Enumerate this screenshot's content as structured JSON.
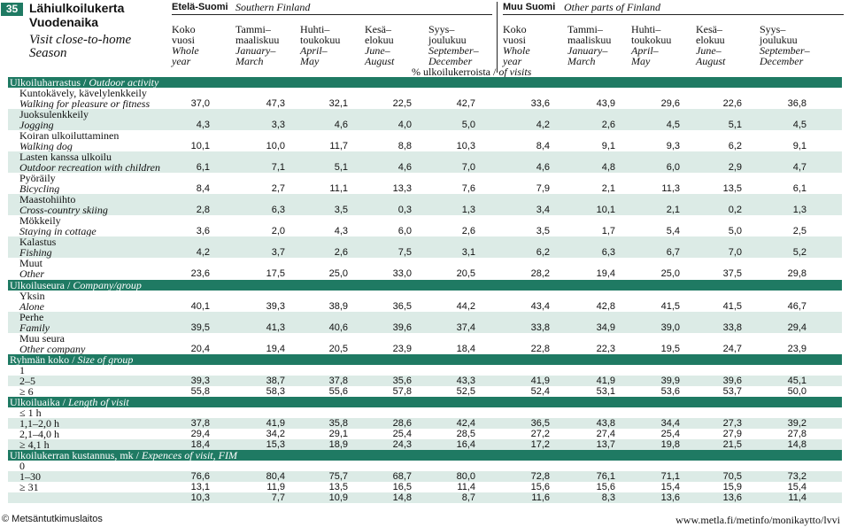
{
  "header": {
    "number": "35",
    "title_fi_1": "Lähiulkoilukerta",
    "title_fi_2": "Vuodenaika",
    "title_en_1": "Visit close-to-home",
    "title_en_2": "Season",
    "region_south_fi": "Etelä-Suomi",
    "region_south_en": "Southern Finland",
    "region_other_fi": "Muu Suomi",
    "region_other_en": "Other parts of Finland",
    "periods": [
      {
        "fi1": "Koko",
        "fi2": "vuosi",
        "en1": "Whole",
        "en2": "year"
      },
      {
        "fi1": "Tammi–",
        "fi2": "maaliskuu",
        "en1": "January–",
        "en2": "March"
      },
      {
        "fi1": "Huhti–",
        "fi2": "toukokuu",
        "en1": "April–",
        "en2": "May"
      },
      {
        "fi1": "Kesä–",
        "fi2": "elokuu",
        "en1": "June–",
        "en2": "August"
      },
      {
        "fi1": "Syys–",
        "fi2": "joulukuu",
        "en1": "September–",
        "en2": "December"
      }
    ],
    "pct_fi": "% ulkoilukerroista",
    "pct_sep": "/",
    "pct_en": "of visits"
  },
  "sections": [
    {
      "fi": "Ulkoiluharrastus",
      "sep": "/",
      "en": "Outdoor activity"
    },
    {
      "fi": "Ulkoiluseura",
      "sep": "/",
      "en": "Company/group"
    },
    {
      "fi": "Ryhmän koko",
      "sep": "/",
      "en": "Size of group"
    },
    {
      "fi": "Ulkoiluaika",
      "sep": "/",
      "en": "Length of visit"
    },
    {
      "fi": "Ulkoilukerran kustannus, mk",
      "sep": "/",
      "en": "Expences of visit, FIM"
    }
  ],
  "rows": [
    {
      "fi": "Kuntokävely, kävelylenkkeily",
      "en": "Walking for pleasure or fitness",
      "v": [
        "37,0",
        "47,3",
        "32,1",
        "22,5",
        "42,7",
        "33,6",
        "43,9",
        "29,6",
        "22,6",
        "36,8"
      ]
    },
    {
      "fi": "Juoksulenkkeily",
      "en": "Jogging",
      "v": [
        "4,3",
        "3,3",
        "4,6",
        "4,0",
        "5,0",
        "4,2",
        "2,6",
        "4,5",
        "5,1",
        "4,5"
      ]
    },
    {
      "fi": "Koiran ulkoiluttaminen",
      "en": "Walking dog",
      "v": [
        "10,1",
        "10,0",
        "11,7",
        "8,8",
        "10,3",
        "8,4",
        "9,1",
        "9,3",
        "6,2",
        "9,1"
      ]
    },
    {
      "fi": "Lasten kanssa ulkoilu",
      "en": "Outdoor recreation with  children",
      "v": [
        "6,1",
        "7,1",
        "5,1",
        "4,6",
        "7,0",
        "4,6",
        "4,8",
        "6,0",
        "2,9",
        "4,7"
      ]
    },
    {
      "fi": "Pyöräily",
      "en": "Bicycling",
      "v": [
        "8,4",
        "2,7",
        "11,1",
        "13,3",
        "7,6",
        "7,9",
        "2,1",
        "11,3",
        "13,5",
        "6,1"
      ]
    },
    {
      "fi": "Maastohiihto",
      "en": "Cross-country skiing",
      "v": [
        "2,8",
        "6,3",
        "3,5",
        "0,3",
        "1,3",
        "3,4",
        "10,1",
        "2,1",
        "0,2",
        "1,3"
      ]
    },
    {
      "fi": "Mökkeily",
      "en": "Staying in cottage",
      "v": [
        "3,6",
        "2,0",
        "4,3",
        "6,0",
        "2,6",
        "3,5",
        "1,7",
        "5,4",
        "5,0",
        "2,5"
      ]
    },
    {
      "fi": "Kalastus",
      "en": "Fishing",
      "v": [
        "4,2",
        "3,7",
        "2,6",
        "7,5",
        "3,1",
        "6,2",
        "6,3",
        "6,7",
        "7,0",
        "5,2"
      ]
    },
    {
      "fi": "Muut",
      "en": "Other",
      "v": [
        "23,6",
        "17,5",
        "25,0",
        "33,0",
        "20,5",
        "28,2",
        "19,4",
        "25,0",
        "37,5",
        "29,8"
      ]
    },
    {
      "fi": "Yksin",
      "en": "Alone",
      "v": [
        "40,1",
        "39,3",
        "38,9",
        "36,5",
        "44,2",
        "43,4",
        "42,8",
        "41,5",
        "41,5",
        "46,7"
      ]
    },
    {
      "fi": "Perhe",
      "en": "Family",
      "v": [
        "39,5",
        "41,3",
        "40,6",
        "39,6",
        "37,4",
        "33,8",
        "34,9",
        "39,0",
        "33,8",
        "29,4"
      ]
    },
    {
      "fi": "Muu seura",
      "en": "Other company",
      "v": [
        "20,4",
        "19,4",
        "20,5",
        "23,9",
        "18,4",
        "22,8",
        "22,3",
        "19,5",
        "24,7",
        "23,9"
      ]
    }
  ],
  "group_rows": [
    {
      "label": "1",
      "v": []
    },
    {
      "label": "2–5",
      "v": [
        "39,3",
        "38,7",
        "37,8",
        "35,6",
        "43,3",
        "41,9",
        "41,9",
        "39,9",
        "39,6",
        "45,1"
      ]
    },
    {
      "label": "≥ 6",
      "v": [
        "55,8",
        "58,3",
        "55,6",
        "57,8",
        "52,5",
        "52,4",
        "53,1",
        "53,6",
        "53,7",
        "50,0"
      ]
    }
  ],
  "length_rows": [
    {
      "label": "≤ 1 h",
      "v": []
    },
    {
      "label": "1,1–2,0 h",
      "v": [
        "37,8",
        "41,9",
        "35,8",
        "28,6",
        "42,4",
        "36,5",
        "43,8",
        "34,4",
        "27,3",
        "39,2"
      ]
    },
    {
      "label": "2,1–4,0 h",
      "v": [
        "29,4",
        "34,2",
        "29,1",
        "25,4",
        "28,5",
        "27,2",
        "27,4",
        "25,4",
        "27,9",
        "27,8"
      ]
    },
    {
      "label": "≥ 4,1 h",
      "v": [
        "18,4",
        "15,3",
        "18,9",
        "24,3",
        "16,4",
        "17,2",
        "13,7",
        "19,8",
        "21,5",
        "14,8"
      ]
    }
  ],
  "cost_rows": [
    {
      "label": "0",
      "v": []
    },
    {
      "label": "1–30",
      "v": [
        "76,6",
        "80,4",
        "75,7",
        "68,7",
        "80,0",
        "72,8",
        "76,1",
        "71,1",
        "70,5",
        "73,2"
      ]
    },
    {
      "label": "≥ 31",
      "v": [
        "13,1",
        "11,9",
        "13,5",
        "16,5",
        "11,4",
        "15,6",
        "15,6",
        "15,4",
        "15,9",
        "15,4"
      ]
    },
    {
      "label": "",
      "v": [
        "10,3",
        "7,7",
        "10,9",
        "14,8",
        "8,7",
        "11,6",
        "8,3",
        "13,6",
        "13,6",
        "11,4"
      ]
    }
  ],
  "footer": {
    "left": "© Metsäntutkimuslaitos",
    "right": "www.metla.fi/metinfo/monikaytto/lvvi"
  }
}
